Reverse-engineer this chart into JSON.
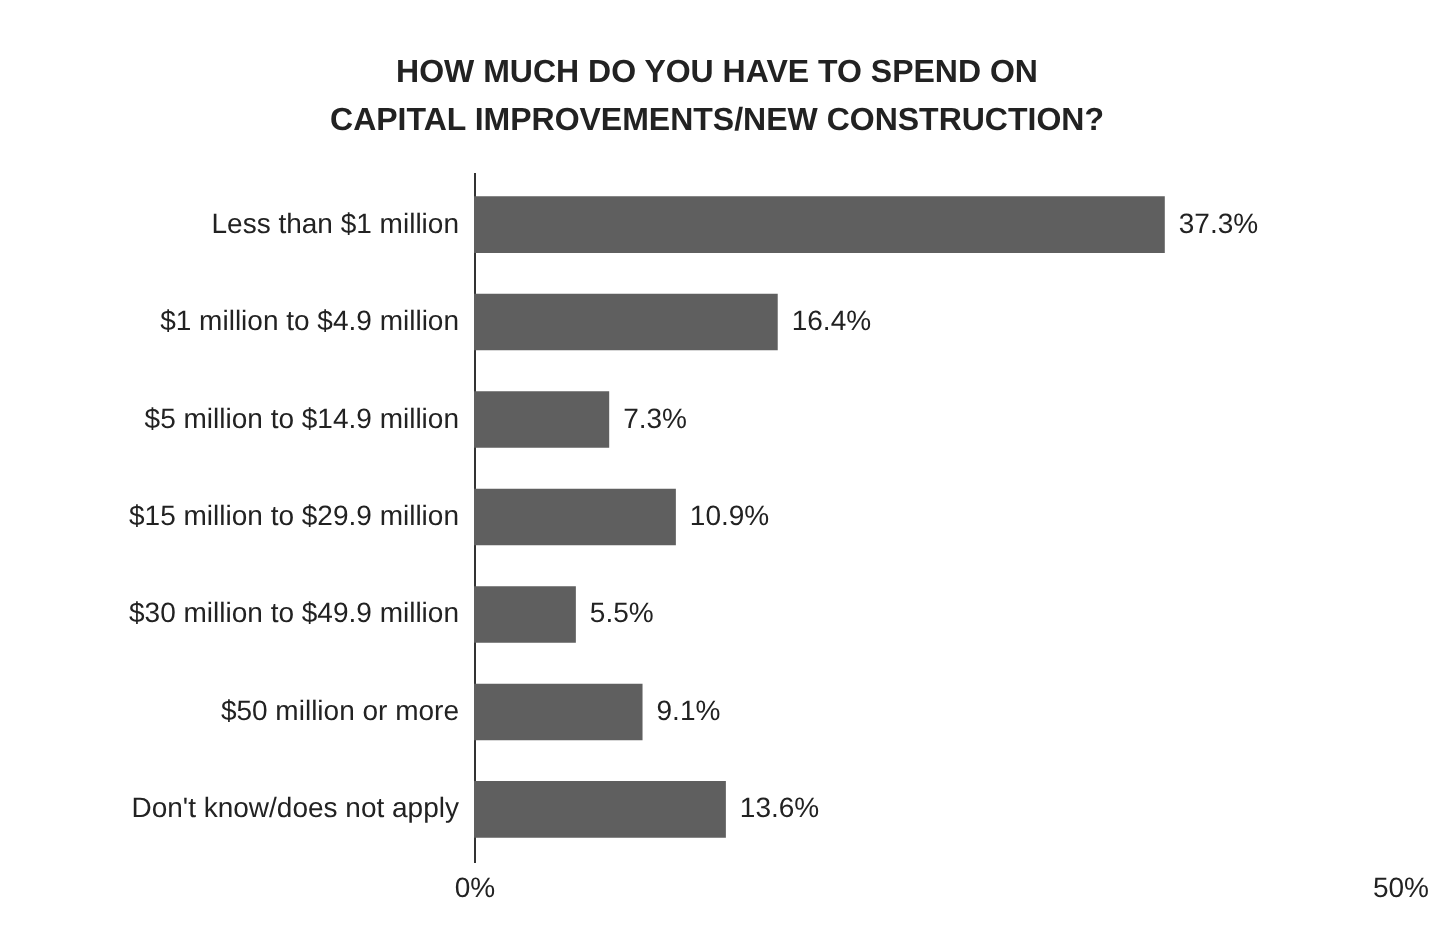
{
  "chart_data": {
    "type": "bar",
    "orientation": "horizontal",
    "title": "HOW MUCH DO YOU HAVE TO SPEND ON\nCAPITAL IMPROVEMENTS/NEW CONSTRUCTION?",
    "categories": [
      "Less than $1 million",
      "$1 million to $4.9 million",
      "$5 million to $14.9 million",
      "$15 million to $29.9 million",
      "$30 million to $49.9 million",
      "$50 million or more",
      "Don't know/does not apply"
    ],
    "values": [
      37.3,
      16.4,
      7.3,
      10.9,
      5.5,
      9.1,
      13.6
    ],
    "value_labels": [
      "37.3%",
      "16.4%",
      "7.3%",
      "10.9%",
      "5.5%",
      "9.1%",
      "13.6%"
    ],
    "color": "#5f5f5f",
    "xlim": [
      0,
      50
    ],
    "xticks": [
      {
        "value": 0,
        "label": "0%"
      },
      {
        "value": 50,
        "label": "50%"
      }
    ],
    "grid": false
  }
}
